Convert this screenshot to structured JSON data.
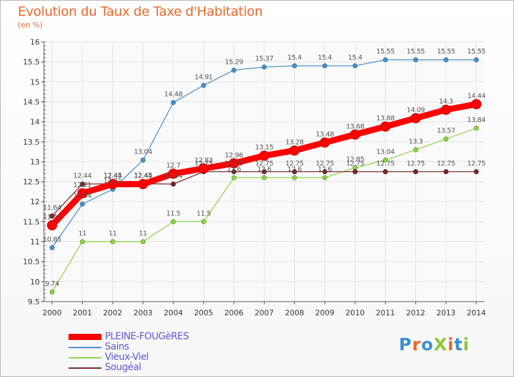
{
  "title": "Evolution du Taux de Taxe d'Habitation",
  "subtitle": "(en %)",
  "logo": "ProXiti",
  "chart_data": {
    "type": "line",
    "title": "Evolution du Taux de Taxe d'Habitation",
    "ylabel": "(en %)",
    "x": [
      "2000",
      "2001",
      "2002",
      "2003",
      "2004",
      "2005",
      "2006",
      "2007",
      "2008",
      "2009",
      "2010",
      "2011",
      "2012",
      "2013",
      "2014"
    ],
    "ylim": [
      9.5,
      16
    ],
    "yticks": [
      "9.5",
      "10",
      "10.5",
      "11",
      "11.5",
      "12",
      "12.5",
      "13",
      "13.5",
      "14",
      "14.5",
      "15",
      "15.5",
      "16"
    ],
    "grid": true,
    "legend_position": "bottom-left",
    "series": [
      {
        "name": "PLEINE-FOUGèRES",
        "color": "#ff0000",
        "values": [
          11.41,
          12.21,
          12.44,
          12.44,
          12.7,
          12.83,
          12.96,
          13.15,
          13.28,
          13.48,
          13.68,
          13.88,
          14.09,
          14.3,
          14.44
        ],
        "labels": [
          "11.41",
          "12.21",
          "12.44",
          "12.44",
          "12.7",
          "12.83",
          "12.96",
          "13.15",
          "13.28",
          "13.48",
          "13.68",
          "13.88",
          "14.09",
          "14.3",
          "14.44"
        ]
      },
      {
        "name": "Sains",
        "color": "#4a90c8",
        "values": [
          10.85,
          11.94,
          12.31,
          13.04,
          14.48,
          14.91,
          15.29,
          15.37,
          15.4,
          15.4,
          15.4,
          15.55,
          15.55,
          15.55,
          15.55
        ],
        "labels": [
          "10.85",
          "11.94",
          "12.31",
          "13.04",
          "14.48",
          "14.91",
          "15.29",
          "15.37",
          "15.4",
          "15.4",
          "15.4",
          "15.55",
          "15.55",
          "15.55",
          "15.55"
        ]
      },
      {
        "name": "Vieux-Viel",
        "color": "#8fd44a",
        "values": [
          9.74,
          11,
          11,
          11,
          11.5,
          11.5,
          12.6,
          12.6,
          12.6,
          12.6,
          12.85,
          13.04,
          13.3,
          13.57,
          13.84
        ],
        "labels": [
          "9.74",
          "11",
          "11",
          "11",
          "11.5",
          "11.5",
          "12.6",
          "12.6",
          "12.6",
          "12.6",
          "12.85",
          "13.04",
          "13.3",
          "13.57",
          "13.84"
        ]
      },
      {
        "name": "Sougéal",
        "color": "#7a2a2a",
        "values": [
          11.64,
          12.44,
          12.45,
          12.45,
          12.44,
          12.75,
          12.75,
          12.75,
          12.75,
          12.75,
          12.75,
          12.75,
          12.75,
          12.75,
          12.75
        ],
        "labels": [
          "11.64",
          "12.44",
          "12.45",
          "12.45",
          "12.44",
          "12.75",
          "12.75",
          "12.75",
          "12.75",
          "12.75",
          "12.75",
          "12.75",
          "12.75",
          "12.75",
          "12.75"
        ]
      }
    ]
  }
}
